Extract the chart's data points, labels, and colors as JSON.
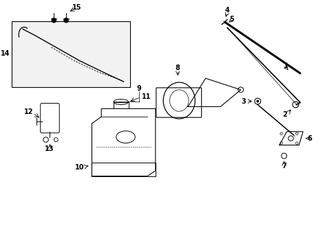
{
  "bg_color": "#ffffff",
  "fg_color": "#000000",
  "fig_width": 4.89,
  "fig_height": 3.6,
  "dpi": 100
}
